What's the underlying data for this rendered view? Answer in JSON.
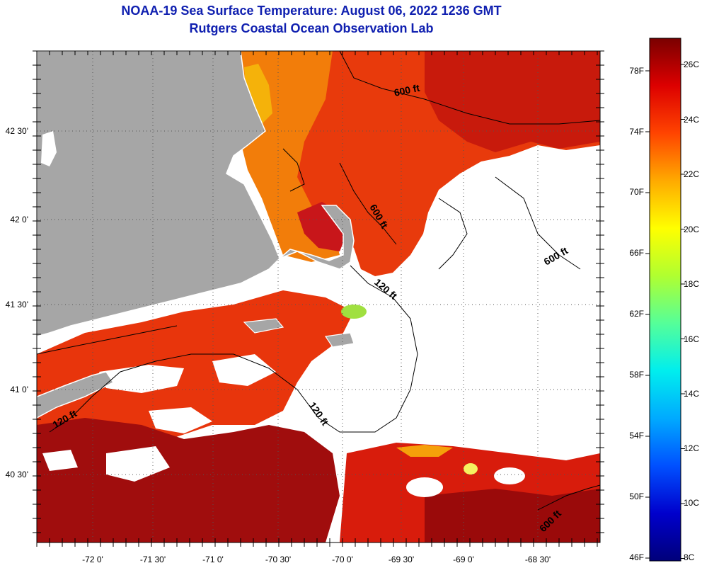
{
  "header": {
    "title": "NOAA-19 Sea Surface Temperature:  August 06, 2022 1236 GMT",
    "subtitle": "Rutgers Coastal Ocean Observation Lab"
  },
  "map": {
    "lon_range": [
      -72.5,
      -67.5
    ],
    "lat_range": [
      40.25,
      42.75
    ],
    "lon_tick_labels": [
      "-72 0'",
      "-71 30'",
      "-71 0'",
      "-70 30'",
      "-70 0'",
      "-69 30'",
      "-69 0'",
      "-68 30'"
    ],
    "lat_tick_labels": [
      "42 30'",
      "42 0'",
      "41 30'",
      "41 0'",
      "40 30'"
    ],
    "contour_labels": [
      "600 ft",
      "600 ft",
      "600 ft",
      "120 ft",
      "120 ft",
      "120 ft",
      "600 ft"
    ],
    "colors": {
      "land": "#a6a6a6",
      "cloud_no_data": "#ffffff",
      "grid": "#555555"
    }
  },
  "colorbar": {
    "fahrenheit_labels": [
      "78F",
      "74F",
      "70F",
      "66F",
      "62F",
      "58F",
      "54F",
      "50F",
      "46F"
    ],
    "celsius_labels": [
      "26C",
      "24C",
      "22C",
      "20C",
      "18C",
      "16C",
      "14C",
      "12C",
      "10C",
      "8C"
    ],
    "colors": [
      "#00007a",
      "#0000cc",
      "#0050ff",
      "#00aaff",
      "#00eeee",
      "#55ff99",
      "#b0ff30",
      "#ffff00",
      "#ffaa00",
      "#ff4400",
      "#dd0000",
      "#7a0000"
    ]
  }
}
